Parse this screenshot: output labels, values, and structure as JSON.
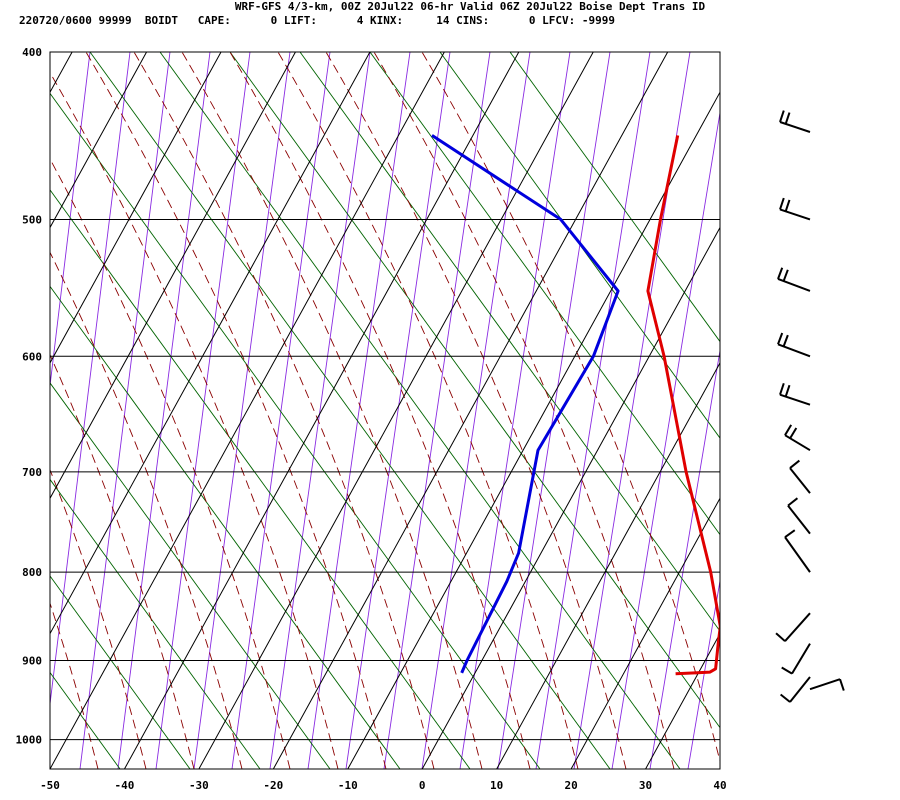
{
  "header": {
    "title": "WRF-GFS 4/3-km, 00Z 20Jul22 06-hr Valid 06Z 20Jul22 Boise Dept Trans ID",
    "stats": "220720/0600 99999  BOIDT   CAPE:      0 LIFT:      4 KINX:     14 CINS:      0 LFCV: -9999"
  },
  "chart_data": {
    "type": "line",
    "chart_kind": "skew-t log-p sounding",
    "x_ticks": [
      -50,
      -40,
      -30,
      -20,
      -10,
      0,
      10,
      20,
      30,
      40
    ],
    "xlim": [
      -50,
      40
    ],
    "y_ticks": [
      400,
      500,
      600,
      700,
      800,
      900,
      1000
    ],
    "ylim": [
      1040,
      400
    ],
    "y_scale": "log",
    "grid": true,
    "colors": {
      "temperature": "#e00000",
      "dewpoint": "#0000dd",
      "dry_adiabat": "#006400",
      "moist_adiabat": "#8b0000",
      "mixing_ratio": "#8a2be2",
      "grid": "#000000"
    },
    "series": [
      {
        "role": "temperature",
        "points": [
          {
            "p": 447,
            "x": -12.5
          },
          {
            "p": 500,
            "x": -8.6
          },
          {
            "p": 550,
            "x": -5.0
          },
          {
            "p": 600,
            "x": 2.0
          },
          {
            "p": 700,
            "x": 13.5
          },
          {
            "p": 800,
            "x": 24.2
          },
          {
            "p": 860,
            "x": 29.5
          },
          {
            "p": 880,
            "x": 30.5
          },
          {
            "p": 910,
            "x": 32.0
          },
          {
            "p": 914,
            "x": 31.5
          },
          {
            "p": 915,
            "x": 29.5
          },
          {
            "p": 916,
            "x": 27.0
          }
        ]
      },
      {
        "role": "dewpoint",
        "points": [
          {
            "p": 447,
            "x": -45.5
          },
          {
            "p": 500,
            "x": -22.0
          },
          {
            "p": 550,
            "x": -9.0
          },
          {
            "p": 600,
            "x": -7.5
          },
          {
            "p": 680,
            "x": -8.0
          },
          {
            "p": 780,
            "x": -3.0
          },
          {
            "p": 810,
            "x": -2.5
          },
          {
            "p": 900,
            "x": -2.0
          },
          {
            "p": 915,
            "x": -1.8
          }
        ]
      }
    ],
    "wind_barbs": [
      {
        "p": 445,
        "tip_dx": -30,
        "tip_dy": -10,
        "flags": 2
      },
      {
        "p": 500,
        "tip_dx": -30,
        "tip_dy": -10,
        "flags": 2
      },
      {
        "p": 550,
        "tip_dx": -32,
        "tip_dy": -12,
        "flags": 2
      },
      {
        "p": 600,
        "tip_dx": -32,
        "tip_dy": -12,
        "flags": 2
      },
      {
        "p": 640,
        "tip_dx": -30,
        "tip_dy": -10,
        "flags": 2
      },
      {
        "p": 680,
        "tip_dx": -25,
        "tip_dy": -15,
        "flags": 2
      },
      {
        "p": 720,
        "tip_dx": -20,
        "tip_dy": -25,
        "flags": 1
      },
      {
        "p": 760,
        "tip_dx": -22,
        "tip_dy": -28,
        "flags": 1
      },
      {
        "p": 800,
        "tip_dx": -25,
        "tip_dy": -35,
        "flags": 1
      },
      {
        "p": 845,
        "tip_dx": -25,
        "tip_dy": 28,
        "flags": 1
      },
      {
        "p": 880,
        "tip_dx": -18,
        "tip_dy": 30,
        "flags": 1
      },
      {
        "p": 920,
        "tip_dx": -20,
        "tip_dy": 25,
        "flags": 1
      },
      {
        "p": 935,
        "tip_dx": 30,
        "tip_dy": -10,
        "flags": 1
      }
    ]
  }
}
